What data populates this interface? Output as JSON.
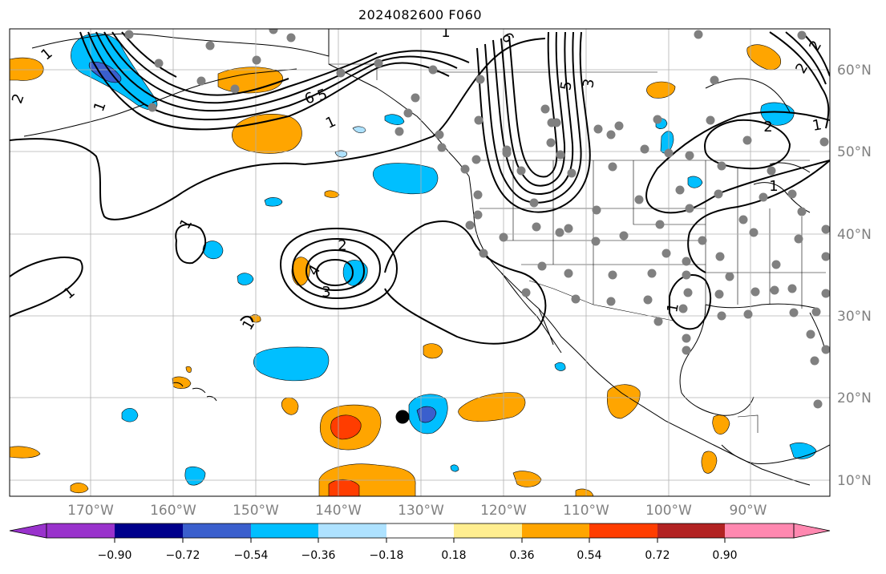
{
  "title": "2024082600 F060",
  "map": {
    "lon_labels": [
      "170°W",
      "160°W",
      "150°W",
      "140°W",
      "130°W",
      "120°W",
      "110°W",
      "100°W",
      "90°W"
    ],
    "lat_labels": [
      "60°N",
      "50°N",
      "40°N",
      "30°N",
      "20°N",
      "10°N"
    ],
    "contour_labels": [
      "1",
      "2",
      "6",
      "5",
      "1",
      "1",
      "6",
      "5",
      "3",
      "2",
      "1",
      "2",
      "1",
      "2",
      "3",
      "4",
      "1",
      "1",
      "1",
      "2",
      "1",
      "1"
    ],
    "colors": {
      "land_line": "#000000",
      "grid": "#b0b0b0",
      "station": "#808080",
      "marker": "#000000"
    }
  },
  "colorbar": {
    "ticks": [
      "−0.90",
      "−0.72",
      "−0.54",
      "−0.36",
      "−0.18",
      "0.18",
      "0.36",
      "0.54",
      "0.72",
      "0.90"
    ],
    "colors": [
      "#9932cc",
      "#00008b",
      "#3a5fcd",
      "#00bfff",
      "#aee2ff",
      "#ffffff",
      "#ffee90",
      "#ffa500",
      "#ff3d00",
      "#b22222",
      "#ff88b0"
    ]
  }
}
